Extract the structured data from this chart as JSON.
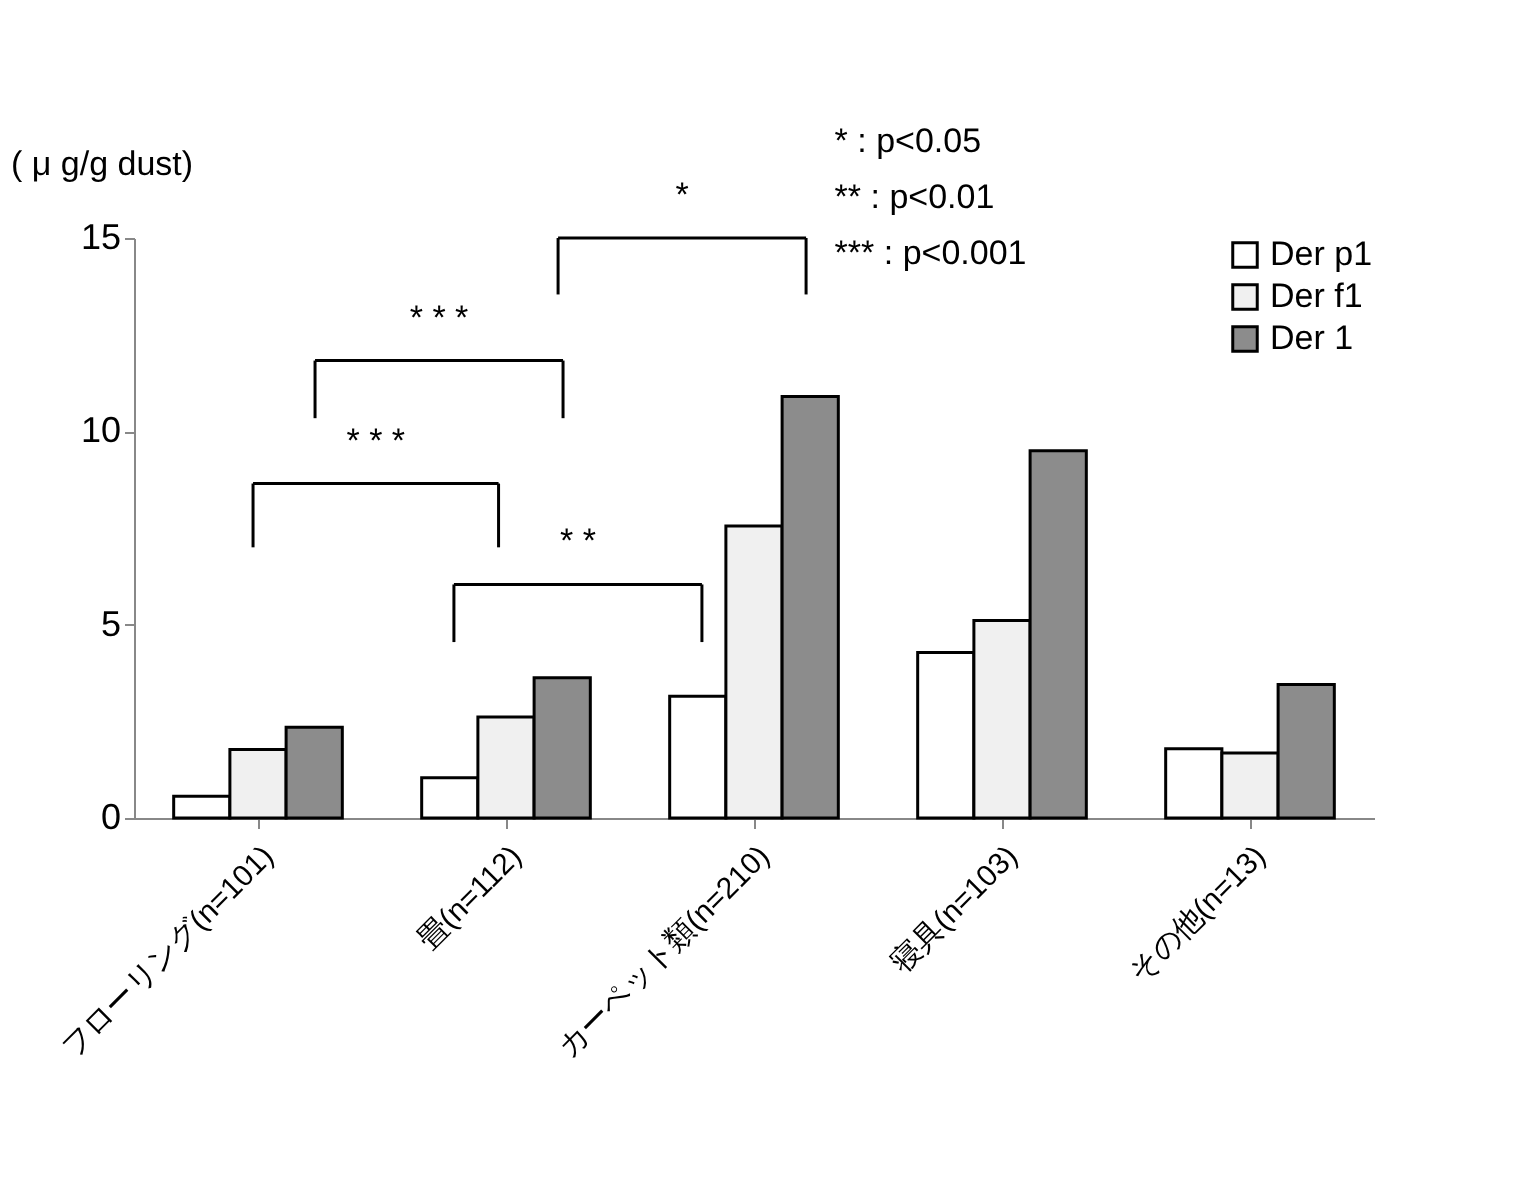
{
  "chart_data": {
    "type": "bar",
    "ylabel": "( μ g/g dust)",
    "categories": [
      "フローリング(n=101)",
      "畳(n=112)",
      "カーペット類(n=210)",
      "寝具(n=103)",
      "その他(n=13)"
    ],
    "series": [
      {
        "name": "Der p1",
        "color": "#ffffff",
        "values": [
          0.56,
          1.04,
          3.15,
          4.28,
          1.79
        ]
      },
      {
        "name": "Der f1",
        "color": "#f0f0f0",
        "values": [
          1.77,
          2.61,
          7.55,
          5.11,
          1.68
        ]
      },
      {
        "name": "Der 1",
        "color": "#8c8c8c",
        "values": [
          2.35,
          3.63,
          10.9,
          9.5,
          3.45
        ]
      }
    ],
    "ylim": [
      0,
      15
    ],
    "yticks": [
      0,
      5,
      10,
      15
    ],
    "grid": false,
    "legend": "top right",
    "annotations": [
      "*    : p<0.05",
      "**  : p<0.01",
      "*** : p<0.001",
      "* * *",
      "* * *",
      "* *",
      "*"
    ]
  }
}
